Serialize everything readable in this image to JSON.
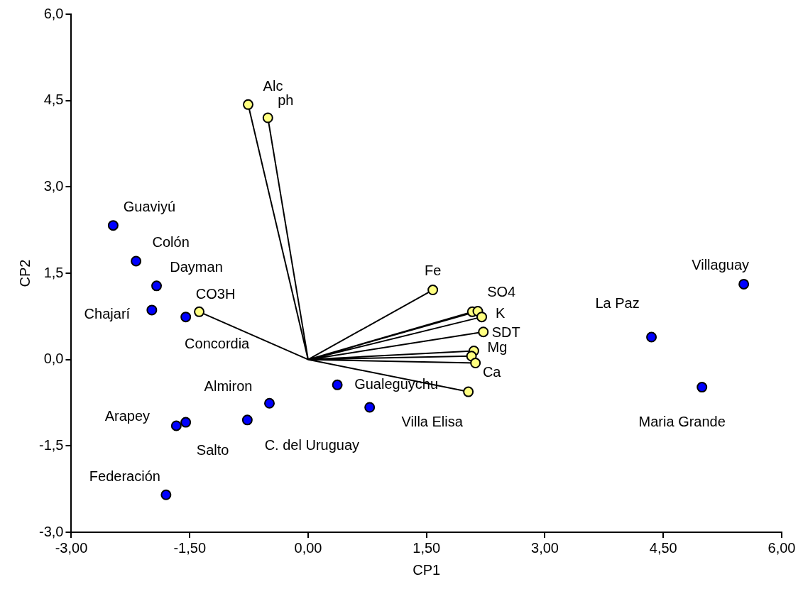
{
  "chart_data": {
    "type": "scatter",
    "xlabel": "CP1",
    "ylabel": "CP2",
    "legend": false,
    "grid": false,
    "xlim": [
      -3,
      6
    ],
    "xticks": [
      {
        "value": -3,
        "label": "-3,00"
      },
      {
        "value": -1.5,
        "label": "-1,50"
      },
      {
        "value": 0,
        "label": "0,00"
      },
      {
        "value": 1.5,
        "label": "1,50"
      },
      {
        "value": 3,
        "label": "3,00"
      },
      {
        "value": 4.5,
        "label": "4,50"
      },
      {
        "value": 6,
        "label": "6,00"
      }
    ],
    "ylim": [
      -3,
      6
    ],
    "yticks": [
      {
        "value": -3,
        "label": "-3,0"
      },
      {
        "value": -1.5,
        "label": "-1,5"
      },
      {
        "value": 0,
        "label": "0,0"
      },
      {
        "value": 1.5,
        "label": "1,5"
      },
      {
        "value": 3,
        "label": "3,0"
      },
      {
        "value": 4.5,
        "label": "4,5"
      },
      {
        "value": 6,
        "label": "6,0"
      }
    ],
    "series": [
      {
        "type": "line",
        "marker": "none",
        "line_style": "solid",
        "color": "#000000",
        "x": [
          0,
          -0.76,
          0,
          -0.51,
          0,
          -1.38,
          0,
          1.58,
          0,
          2.08,
          0,
          2.15,
          0,
          2.2,
          0,
          2.22,
          0,
          2.1,
          0,
          2.07,
          0,
          2.12,
          0,
          2.03
        ],
        "values": [
          0,
          4.43,
          0,
          4.2,
          0,
          0.83,
          0,
          1.21,
          0,
          0.83,
          0,
          0.84,
          0,
          0.74,
          0,
          0.48,
          0,
          0.15,
          0,
          0.06,
          0,
          -0.06,
          0,
          -0.56
        ]
      },
      {
        "marker": "circle",
        "color": "#ffff80",
        "x": [
          -0.76,
          -0.51,
          -1.38,
          1.58,
          2.08,
          2.15,
          2.2,
          2.22,
          2.1,
          2.07,
          2.12,
          2.03
        ],
        "values": [
          4.43,
          4.2,
          0.83,
          1.21,
          0.83,
          0.84,
          0.74,
          0.48,
          0.15,
          0.06,
          -0.06,
          -0.56
        ]
      },
      {
        "marker": "circle",
        "color": "#0000ff",
        "x": [
          -2.47,
          -2.18,
          -1.92,
          -1.98,
          -1.55,
          -0.49,
          -0.77,
          -1.55,
          -1.67,
          -1.8,
          0.37,
          0.78,
          4.35,
          4.99,
          5.52
        ],
        "values": [
          2.33,
          1.71,
          1.28,
          0.86,
          0.74,
          -0.76,
          -1.05,
          -1.09,
          -1.15,
          -2.35,
          -0.44,
          -0.83,
          0.39,
          -0.48,
          1.31
        ]
      }
    ],
    "annotations": [
      {
        "text": "Guaviyú",
        "x": -2.47,
        "y": 2.33
      },
      {
        "text": "Colón",
        "x": -2.18,
        "y": 1.71
      },
      {
        "text": "Dayman",
        "x": -1.92,
        "y": 1.28
      },
      {
        "text": "CO3H",
        "x": -1.38,
        "y": 0.83
      },
      {
        "text": "Chajarí",
        "x": -1.98,
        "y": 0.86
      },
      {
        "text": "Concordia",
        "x": -1.55,
        "y": 0.74
      },
      {
        "text": "Almiron",
        "x": -0.49,
        "y": -0.76
      },
      {
        "text": "Arapey",
        "x": -1.67,
        "y": -1.15
      },
      {
        "text": "Salto",
        "x": -1.55,
        "y": -1.09
      },
      {
        "text": "C. del Uruguay",
        "x": -0.77,
        "y": -1.05
      },
      {
        "text": "Federación",
        "x": -1.8,
        "y": -2.35
      },
      {
        "text": "Gualeguychu",
        "x": 0.37,
        "y": -0.44
      },
      {
        "text": "Villa Elisa",
        "x": 0.78,
        "y": -0.83
      },
      {
        "text": "Fe",
        "x": 1.58,
        "y": 1.21
      },
      {
        "text": "SO4",
        "x": 2.08,
        "y": 0.83
      },
      {
        "text": "K",
        "x": 2.2,
        "y": 0.74
      },
      {
        "text": "SDT",
        "x": 2.22,
        "y": 0.48
      },
      {
        "text": "Mg",
        "x": 2.1,
        "y": 0.15
      },
      {
        "text": "Ca",
        "x": 2.12,
        "y": -0.06
      },
      {
        "text": "La Paz",
        "x": 4.35,
        "y": 0.39
      },
      {
        "text": "Villaguay",
        "x": 5.52,
        "y": 1.31
      },
      {
        "text": "Maria Grande",
        "x": 4.99,
        "y": -0.48
      },
      {
        "text": "Alc",
        "x": -0.76,
        "y": 4.43
      },
      {
        "text": "ph",
        "x": -0.51,
        "y": 4.2
      }
    ]
  }
}
